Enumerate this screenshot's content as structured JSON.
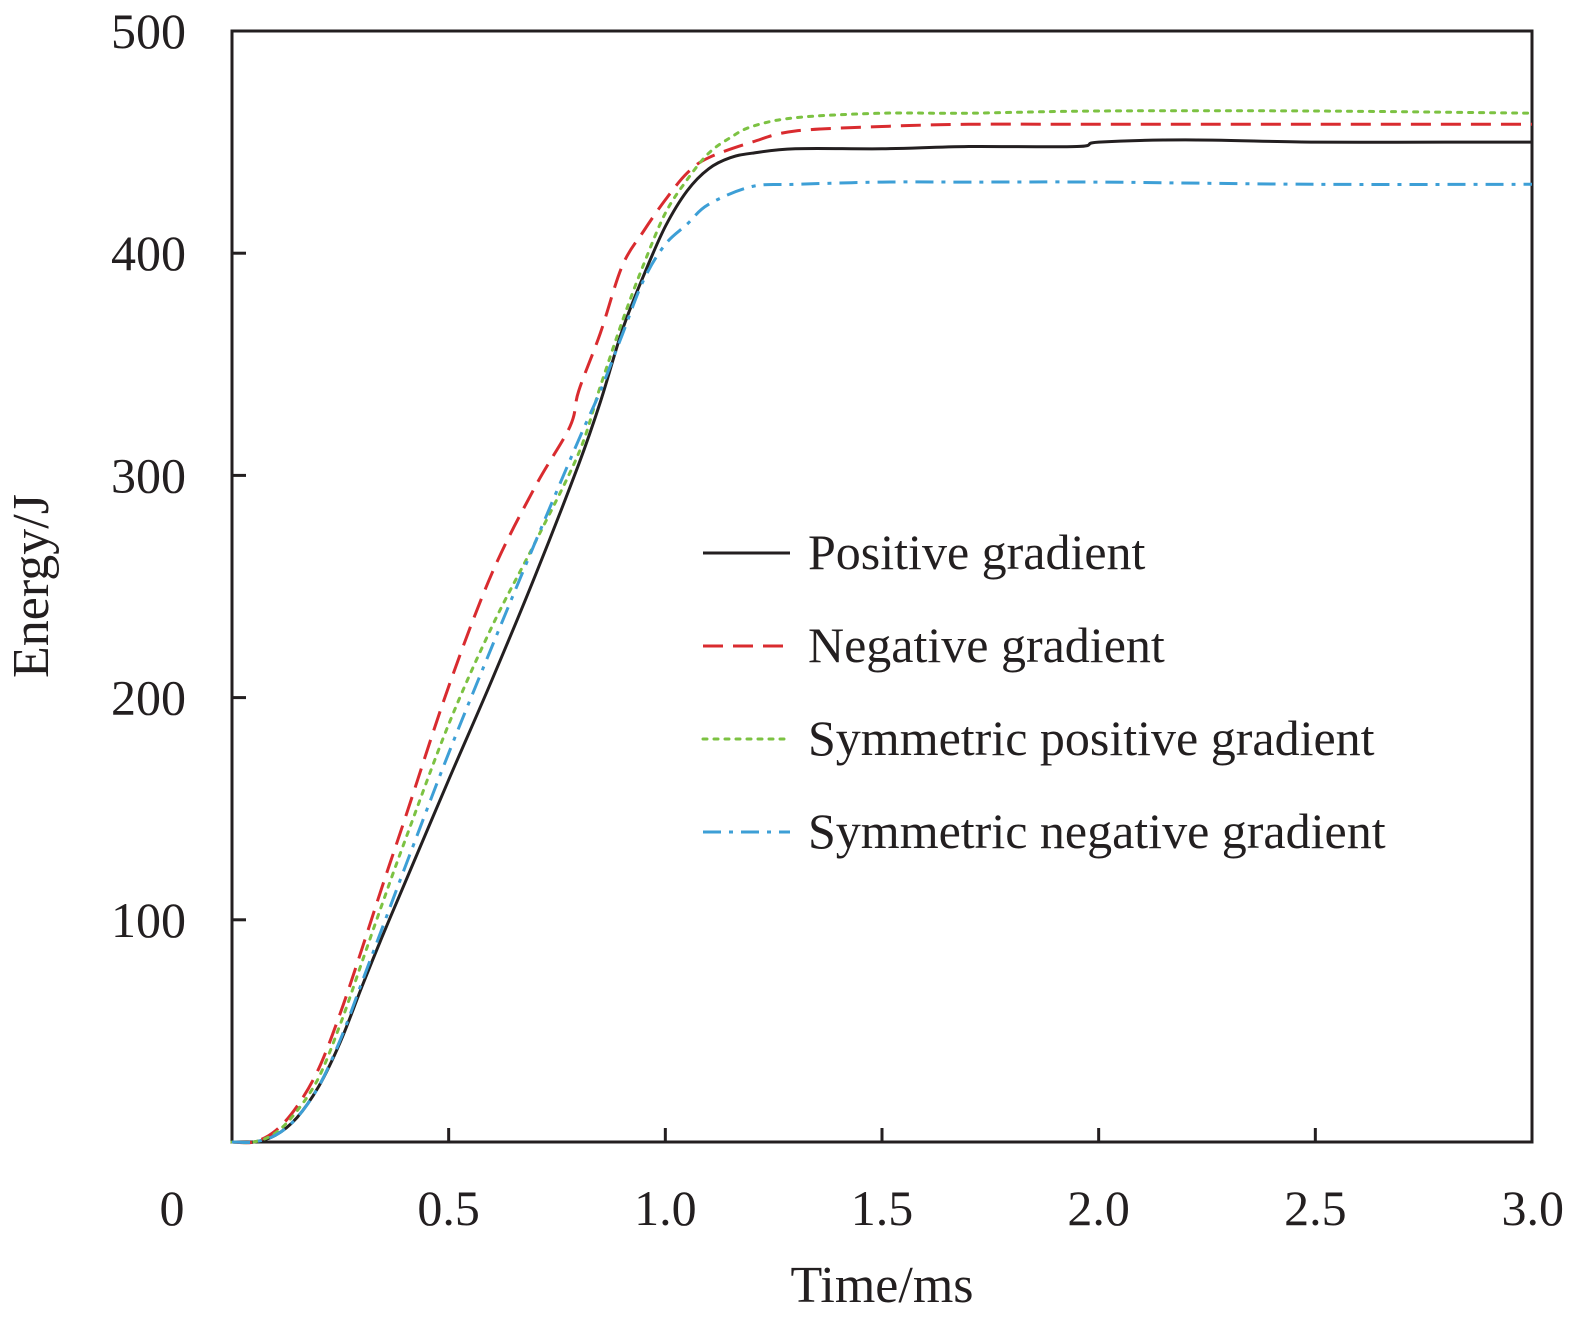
{
  "chart_data": {
    "type": "line",
    "title": "",
    "xlabel": "Time/ms",
    "ylabel": "Energy/J",
    "xlim": [
      0,
      3.0
    ],
    "ylim": [
      0,
      500
    ],
    "grid": false,
    "x_ticks": [
      "0",
      "0.5",
      "1.0",
      "1.5",
      "2.0",
      "2.5",
      "3.0"
    ],
    "x_tick_values": [
      0,
      0.5,
      1.0,
      1.5,
      2.0,
      2.5,
      3.0
    ],
    "y_ticks": [
      "100",
      "200",
      "300",
      "400",
      "500"
    ],
    "y_tick_values": [
      100,
      200,
      300,
      400,
      500
    ],
    "legend_position": "center-right",
    "series": [
      {
        "name": "Positive gradient",
        "color": "#231f20",
        "style": "solid",
        "x": [
          0,
          0.05,
          0.1,
          0.15,
          0.2,
          0.25,
          0.3,
          0.35,
          0.4,
          0.5,
          0.6,
          0.7,
          0.8,
          0.85,
          0.9,
          0.95,
          1.0,
          1.05,
          1.1,
          1.15,
          1.2,
          1.3,
          1.5,
          1.7,
          1.95,
          2.0,
          2.2,
          2.5,
          2.8,
          3.0
        ],
        "y": [
          0,
          0,
          3,
          11,
          25,
          45,
          70,
          94,
          117,
          163,
          208,
          255,
          305,
          333,
          365,
          390,
          412,
          428,
          438,
          443,
          445,
          447,
          447,
          448,
          448,
          450,
          451,
          450,
          450,
          450
        ]
      },
      {
        "name": "Negative gradient",
        "color": "#d92b2f",
        "style": "dashed",
        "x": [
          0,
          0.05,
          0.1,
          0.15,
          0.2,
          0.25,
          0.3,
          0.35,
          0.4,
          0.5,
          0.6,
          0.7,
          0.78,
          0.8,
          0.85,
          0.9,
          0.95,
          1.0,
          1.05,
          1.1,
          1.2,
          1.3,
          1.5,
          1.7,
          2.0,
          2.5,
          3.0
        ],
        "y": [
          0,
          0,
          5,
          16,
          33,
          58,
          87,
          117,
          146,
          205,
          256,
          295,
          322,
          338,
          364,
          394,
          410,
          424,
          436,
          443,
          450,
          455,
          457,
          458,
          458,
          458,
          458
        ]
      },
      {
        "name": "Symmetric positive gradient",
        "color": "#7cc242",
        "style": "dotted",
        "x": [
          0,
          0.05,
          0.1,
          0.15,
          0.2,
          0.25,
          0.3,
          0.35,
          0.4,
          0.5,
          0.6,
          0.7,
          0.8,
          0.85,
          0.9,
          0.95,
          1.0,
          1.05,
          1.1,
          1.15,
          1.2,
          1.3,
          1.5,
          1.7,
          2.0,
          2.5,
          3.0
        ],
        "y": [
          0,
          0,
          4,
          14,
          29,
          53,
          81,
          109,
          136,
          188,
          232,
          270,
          310,
          340,
          369,
          395,
          418,
          433,
          445,
          452,
          457,
          461,
          463,
          463,
          464,
          464,
          463
        ]
      },
      {
        "name": "Symmetric negative gradient",
        "color": "#3d9fd6",
        "style": "dashdot",
        "x": [
          0,
          0.05,
          0.1,
          0.15,
          0.2,
          0.25,
          0.3,
          0.35,
          0.4,
          0.5,
          0.6,
          0.7,
          0.8,
          0.85,
          0.9,
          0.95,
          1.0,
          1.05,
          1.1,
          1.2,
          1.3,
          1.5,
          1.7,
          2.0,
          2.5,
          3.0
        ],
        "y": [
          0,
          0,
          3,
          11,
          25,
          46,
          72,
          98,
          124,
          175,
          223,
          270,
          316,
          338,
          363,
          388,
          404,
          413,
          422,
          430,
          431,
          432,
          432,
          432,
          431,
          431
        ]
      }
    ]
  }
}
